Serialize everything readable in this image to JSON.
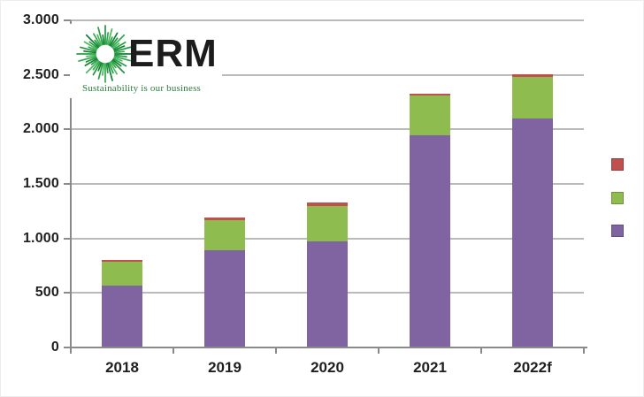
{
  "logo": {
    "text": "ERM",
    "tagline": "Sustainability is our business"
  },
  "chart_data": {
    "type": "bar",
    "stacked": true,
    "title": "",
    "xlabel": "",
    "ylabel": "",
    "categories": [
      "2018",
      "2019",
      "2020",
      "2021",
      "2022f"
    ],
    "series": [
      {
        "name": "purple",
        "color": "#8064A2",
        "values": [
          570,
          890,
          975,
          1945,
          2100
        ]
      },
      {
        "name": "green",
        "color": "#8FBC4F",
        "values": [
          215,
          280,
          325,
          365,
          380
        ]
      },
      {
        "name": "red",
        "color": "#C0504D",
        "values": [
          20,
          25,
          30,
          20,
          25
        ]
      }
    ],
    "stack_totals": [
      805,
      1195,
      1330,
      2330,
      2505
    ],
    "ylim": [
      0,
      3000
    ],
    "y_tick_step": 500,
    "y_tick_labels": [
      "0",
      "500",
      "1.000",
      "1.500",
      "2.000",
      "2.500",
      "3.000"
    ],
    "grid": true,
    "legend_position": "right-outside",
    "legend_labels_visible": false
  },
  "legend": {
    "items": [
      {
        "name": "red",
        "color": "#C0504D"
      },
      {
        "name": "green",
        "color": "#8FBC4F"
      },
      {
        "name": "purple",
        "color": "#8064A2"
      }
    ]
  },
  "colors": {
    "grid": "#a3a3a3",
    "axis": "#8a8a8a",
    "label": "#1f1f1f",
    "logo_green": "#21973f",
    "tagline_green": "#2c7a3f",
    "background": "#ffffff"
  }
}
